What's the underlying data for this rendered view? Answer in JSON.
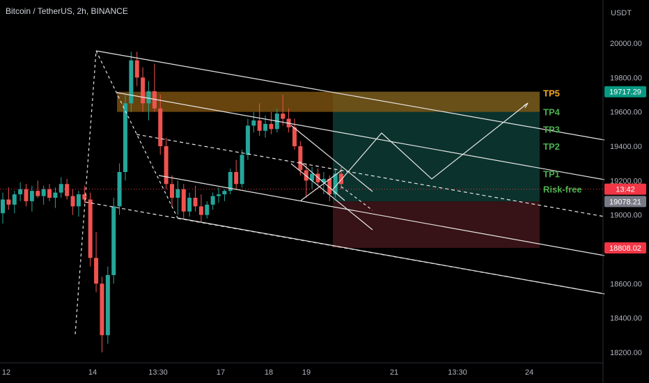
{
  "symbol_title": "Bitcoin / TetherUS, 2h, BINANCE",
  "currency": "USDT",
  "colors": {
    "background": "#000000",
    "bull": "#26a69a",
    "bear": "#ef5350",
    "tp5": "#f5a623",
    "tp_green": "#4caf50",
    "profit_zone": "#0d3b34",
    "loss_zone": "#3d1418",
    "tp5_zone": "#8a5a12",
    "drawing": "#e6e6e6"
  },
  "chart_data": {
    "type": "candlestick",
    "x_tick_labels": [
      "12",
      "14",
      "13:30",
      "17",
      "18",
      "19",
      "21",
      "13:30",
      "24"
    ],
    "y_ticks": [
      18200,
      18400,
      18600,
      18800,
      19000,
      19200,
      19400,
      19600,
      19800,
      20000
    ],
    "y_tick_labels": [
      "18200.00",
      "18400.00",
      "18600.00",
      "18800.00",
      "19000.00",
      "19200.00",
      "19400.00",
      "19600.00",
      "19800.00",
      "20000.00"
    ],
    "ylim": [
      18125,
      20200
    ],
    "grid": false,
    "price_tags": [
      {
        "label": "19717.29",
        "value": 19717.29,
        "color": "#089981"
      },
      {
        "label": "13:42",
        "value": 19150,
        "color": "#f23645"
      },
      {
        "label": "19078.21",
        "value": 19078.21,
        "color": "#787b86"
      },
      {
        "label": "18808.02",
        "value": 18808.02,
        "color": "#f23645"
      }
    ],
    "targets": [
      {
        "label": "TP5",
        "value": 19710
      },
      {
        "label": "TP4",
        "value": 19600
      },
      {
        "label": "TP3",
        "value": 19500
      },
      {
        "label": "TP2",
        "value": 19400
      },
      {
        "label": "TP1",
        "value": 19240
      },
      {
        "label": "Risk-free",
        "value": 19150
      }
    ],
    "position": {
      "entry": 19078.21,
      "stop": 18808.02,
      "take_profit": 19717.29
    },
    "candles": [
      [
        19010,
        19130,
        18950,
        19090
      ],
      [
        19090,
        19160,
        19030,
        19060
      ],
      [
        19060,
        19140,
        19010,
        19120
      ],
      [
        19120,
        19190,
        19080,
        19150
      ],
      [
        19150,
        19180,
        19050,
        19080
      ],
      [
        19080,
        19170,
        19020,
        19140
      ],
      [
        19140,
        19200,
        19100,
        19110
      ],
      [
        19110,
        19170,
        19060,
        19150
      ],
      [
        19150,
        19180,
        19080,
        19100
      ],
      [
        19100,
        19160,
        19040,
        19130
      ],
      [
        19130,
        19220,
        19100,
        19180
      ],
      [
        19180,
        19210,
        19090,
        19110
      ],
      [
        19110,
        19150,
        19000,
        19050
      ],
      [
        19050,
        19140,
        18990,
        19120
      ],
      [
        19120,
        19170,
        19070,
        19090
      ],
      [
        19090,
        19130,
        18700,
        18750
      ],
      [
        18750,
        18900,
        18550,
        18600
      ],
      [
        18600,
        18640,
        18200,
        18300
      ],
      [
        18300,
        18700,
        18250,
        18650
      ],
      [
        18650,
        19100,
        18600,
        19050
      ],
      [
        19050,
        19300,
        19000,
        19250
      ],
      [
        19250,
        19700,
        19200,
        19650
      ],
      [
        19650,
        19950,
        19600,
        19900
      ],
      [
        19900,
        19950,
        19750,
        19800
      ],
      [
        19800,
        19860,
        19600,
        19650
      ],
      [
        19650,
        19780,
        19550,
        19720
      ],
      [
        19720,
        19880,
        19600,
        19620
      ],
      [
        19620,
        19700,
        19350,
        19400
      ],
      [
        19400,
        19450,
        19150,
        19180
      ],
      [
        19180,
        19230,
        19050,
        19100
      ],
      [
        19100,
        19200,
        19000,
        19150
      ],
      [
        19150,
        19180,
        18980,
        19020
      ],
      [
        19020,
        19130,
        18990,
        19100
      ],
      [
        19100,
        19170,
        19020,
        19050
      ],
      [
        19050,
        19120,
        18960,
        19000
      ],
      [
        19000,
        19080,
        18980,
        19060
      ],
      [
        19060,
        19130,
        19030,
        19110
      ],
      [
        19110,
        19160,
        19070,
        19120
      ],
      [
        19120,
        19150,
        19080,
        19140
      ],
      [
        19140,
        19270,
        19120,
        19250
      ],
      [
        19250,
        19320,
        19150,
        19180
      ],
      [
        19180,
        19380,
        19160,
        19350
      ],
      [
        19350,
        19560,
        19320,
        19520
      ],
      [
        19520,
        19600,
        19480,
        19550
      ],
      [
        19550,
        19650,
        19460,
        19490
      ],
      [
        19490,
        19580,
        19450,
        19530
      ],
      [
        19530,
        19600,
        19470,
        19500
      ],
      [
        19500,
        19620,
        19480,
        19590
      ],
      [
        19590,
        19700,
        19520,
        19560
      ],
      [
        19560,
        19620,
        19480,
        19510
      ],
      [
        19510,
        19560,
        19380,
        19400
      ],
      [
        19400,
        19430,
        19230,
        19260
      ],
      [
        19260,
        19300,
        19100,
        19200
      ],
      [
        19200,
        19280,
        19150,
        19240
      ],
      [
        19240,
        19270,
        19170,
        19190
      ],
      [
        19190,
        19250,
        19120,
        19210
      ],
      [
        19210,
        19230,
        19080,
        19120
      ],
      [
        19120,
        19270,
        19100,
        19240
      ],
      [
        19240,
        19280,
        19150,
        19180
      ]
    ]
  }
}
